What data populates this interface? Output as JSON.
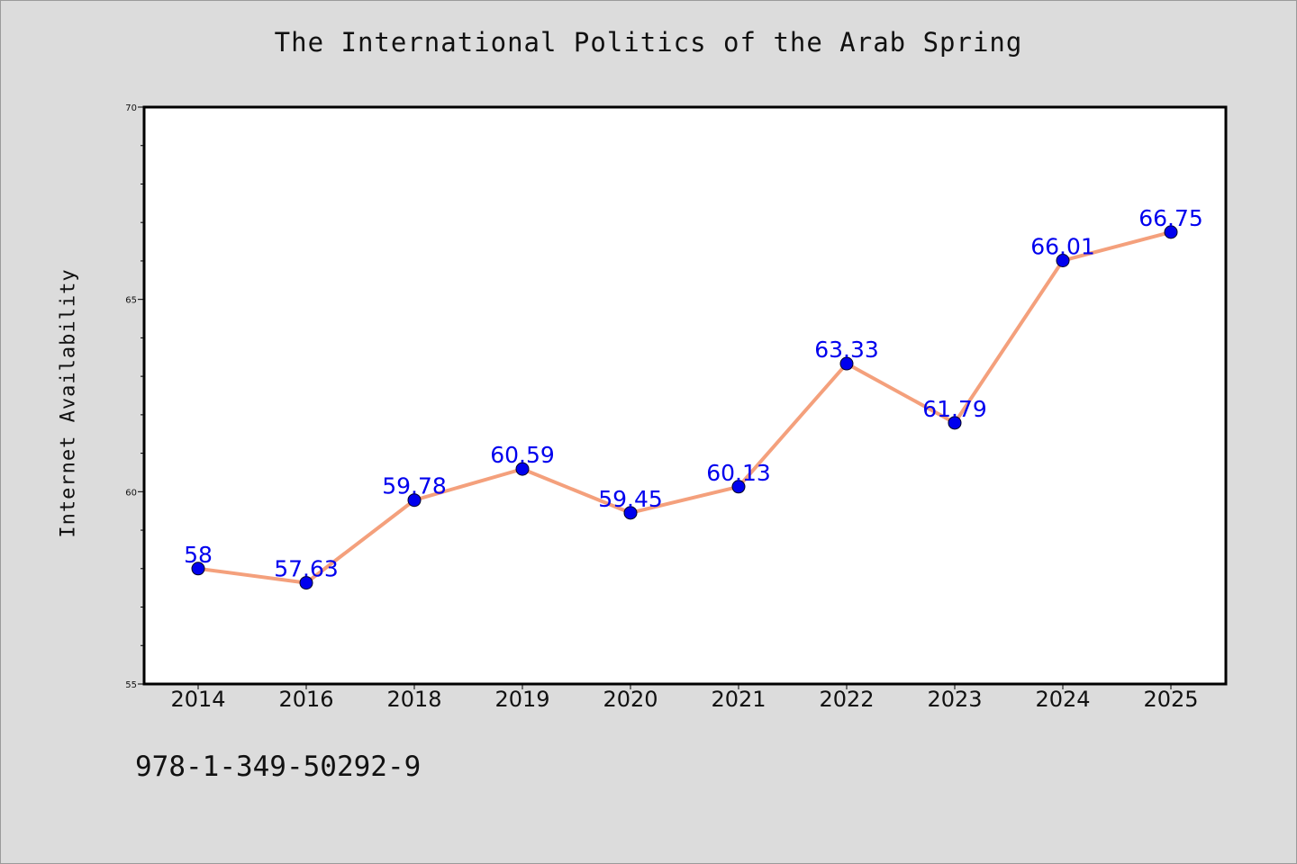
{
  "chart_data": {
    "type": "line",
    "title": "The International Politics of the Arab Spring",
    "xlabel": "",
    "ylabel": "Internet Availability",
    "categories": [
      "2014",
      "2016",
      "2018",
      "2019",
      "2020",
      "2021",
      "2022",
      "2023",
      "2024",
      "2025"
    ],
    "values": [
      58,
      57.63,
      59.78,
      60.59,
      59.45,
      60.13,
      63.33,
      61.79,
      66.01,
      66.75
    ],
    "data_labels": [
      "58",
      "57.63",
      "59.78",
      "60.59",
      "59.45",
      "60.13",
      "63.33",
      "61.79",
      "66.01",
      "66.75"
    ],
    "ylim": [
      55,
      70
    ],
    "yticks": [
      "55",
      "60",
      "65",
      "70"
    ],
    "grid": false,
    "colors": {
      "line": "#f4a07c",
      "marker": "#0000ee",
      "data_label": "#0000ee"
    }
  },
  "note": "978-1-349-50292-9"
}
